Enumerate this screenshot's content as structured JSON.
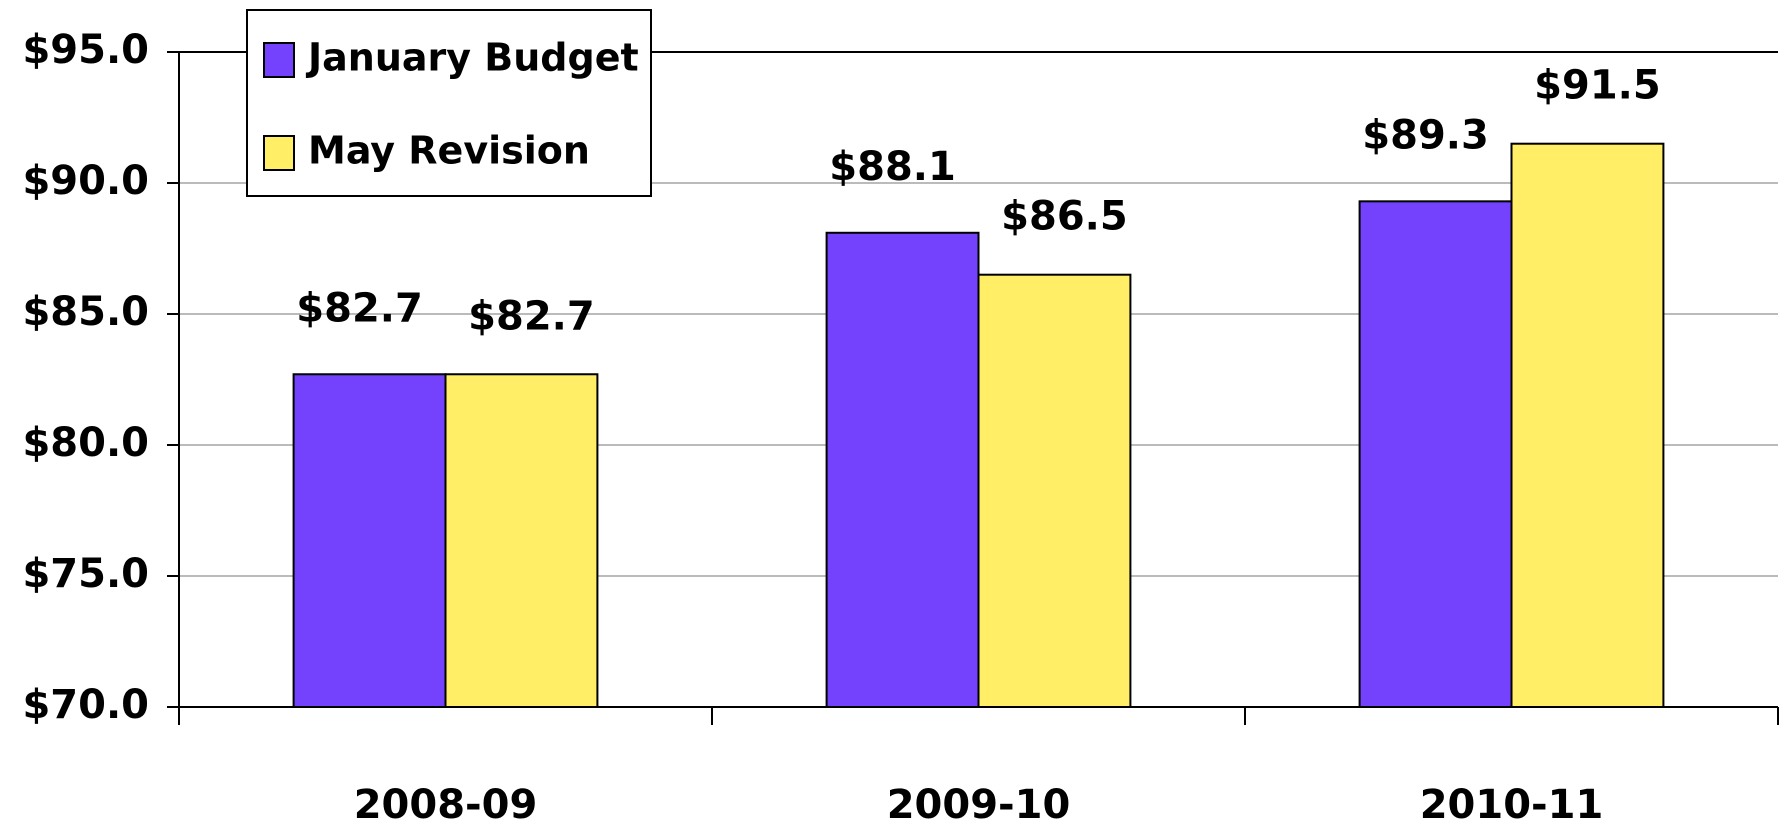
{
  "chart_data": {
    "type": "bar",
    "categories": [
      "2008-09",
      "2009-10",
      "2010-11"
    ],
    "series": [
      {
        "name": "January Budget",
        "color": "#7442fc",
        "values": [
          82.7,
          88.1,
          89.3
        ],
        "value_labels": [
          "$82.7",
          "$88.1",
          "$89.3"
        ]
      },
      {
        "name": "May Revision",
        "color": "#ffee66",
        "values": [
          82.7,
          86.5,
          91.5
        ],
        "value_labels": [
          "$82.7",
          "$86.5",
          "$91.5"
        ]
      }
    ],
    "ylim": [
      70,
      95
    ],
    "yticks": [
      {
        "value": 70,
        "label": "$70.0"
      },
      {
        "value": 75,
        "label": "$75.0"
      },
      {
        "value": 80,
        "label": "$80.0"
      },
      {
        "value": 85,
        "label": "$85.0"
      },
      {
        "value": 90,
        "label": "$90.0"
      },
      {
        "value": 95,
        "label": "$95.0"
      }
    ],
    "grid": true,
    "legend": "top-left"
  }
}
